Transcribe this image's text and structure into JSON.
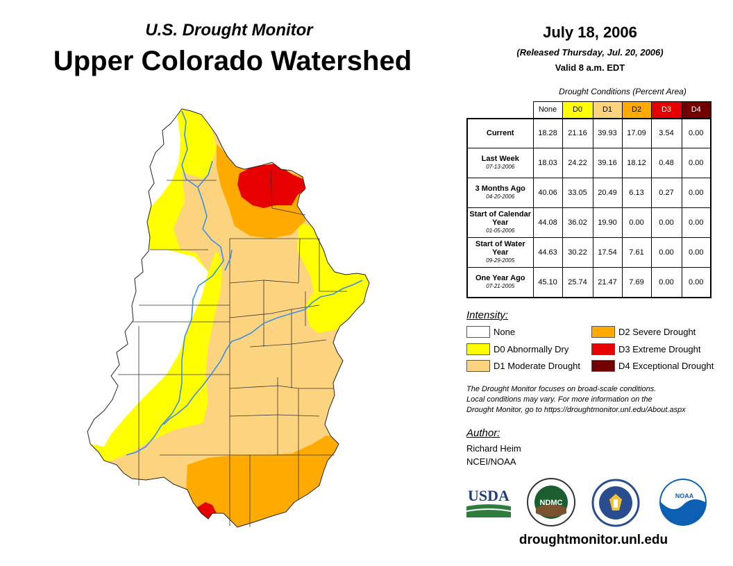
{
  "header": {
    "subtitle": "U.S. Drought Monitor",
    "title": "Upper Colorado Watershed",
    "date": "July 18, 2006",
    "released": "(Released Thursday, Jul. 20, 2006)",
    "valid": "Valid 8 a.m. EDT"
  },
  "colors": {
    "none": "#ffffff",
    "d0": "#ffff00",
    "d1": "#fcd37f",
    "d2": "#ffaa00",
    "d3": "#e60000",
    "d4": "#730000",
    "river": "#3b8fe6",
    "border": "#222222"
  },
  "table": {
    "caption": "Drought Conditions (Percent Area)",
    "columns": [
      "None",
      "D0",
      "D1",
      "D2",
      "D3",
      "D4"
    ],
    "rows": [
      {
        "label": "Current",
        "date": "",
        "values": [
          "18.28",
          "21.16",
          "39.93",
          "17.09",
          "3.54",
          "0.00"
        ]
      },
      {
        "label": "Last Week",
        "date": "07-13-2006",
        "values": [
          "18.03",
          "24.22",
          "39.16",
          "18.12",
          "0.48",
          "0.00"
        ]
      },
      {
        "label": "3 Months Ago",
        "date": "04-20-2006",
        "values": [
          "40.06",
          "33.05",
          "20.49",
          "6.13",
          "0.27",
          "0.00"
        ]
      },
      {
        "label": "Start of Calendar Year",
        "date": "01-05-2006",
        "values": [
          "44.08",
          "36.02",
          "19.90",
          "0.00",
          "0.00",
          "0.00"
        ]
      },
      {
        "label": "Start of Water Year",
        "date": "09-29-2005",
        "values": [
          "44.63",
          "30.22",
          "17.54",
          "7.61",
          "0.00",
          "0.00"
        ]
      },
      {
        "label": "One Year Ago",
        "date": "07-21-2005",
        "values": [
          "45.10",
          "25.74",
          "21.47",
          "7.69",
          "0.00",
          "0.00"
        ]
      }
    ]
  },
  "legend": {
    "title": "Intensity:",
    "items": [
      {
        "label": "None",
        "key": "none"
      },
      {
        "label": "D0 Abnormally Dry",
        "key": "d0"
      },
      {
        "label": "D1 Moderate Drought",
        "key": "d1"
      },
      {
        "label": "D2 Severe Drought",
        "key": "d2"
      },
      {
        "label": "D3 Extreme Drought",
        "key": "d3"
      },
      {
        "label": "D4 Exceptional Drought",
        "key": "d4"
      }
    ]
  },
  "note": {
    "line1": "The Drought Monitor focuses on broad-scale conditions.",
    "line2": "Local conditions may vary. For more information on the",
    "line3": "Drought Monitor, go to https://droughtmonitor.unl.edu/About.aspx"
  },
  "author": {
    "title": "Author:",
    "name": "Richard Heim",
    "org": "NCEI/NOAA"
  },
  "logos": {
    "usda": "USDA",
    "ndmc": "NDMC",
    "noaa": "NOAA"
  },
  "footer": {
    "url": "droughtmonitor.unl.edu"
  }
}
